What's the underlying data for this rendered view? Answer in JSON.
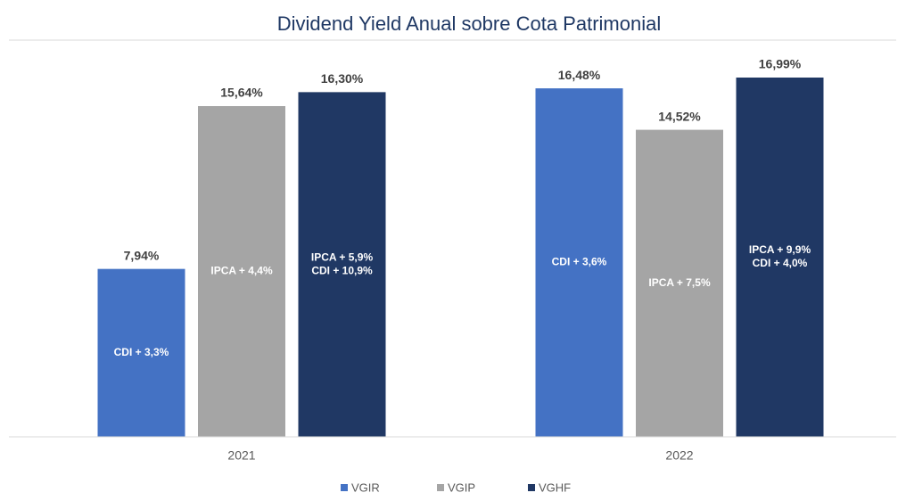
{
  "chart_data": {
    "type": "bar",
    "title": "Dividend Yield Anual sobre Cota Patrimonial",
    "categories": [
      "2021",
      "2022"
    ],
    "series": [
      {
        "name": "VGIR",
        "color": "#4472c4",
        "values": [
          7.94,
          16.48
        ],
        "value_labels": [
          "7,94%",
          "16,48%"
        ],
        "inner_labels": [
          [
            "CDI + 3,3%"
          ],
          [
            "CDI + 3,6%"
          ]
        ]
      },
      {
        "name": "VGIP",
        "color": "#a5a5a5",
        "values": [
          15.64,
          14.52
        ],
        "value_labels": [
          "15,64%",
          "14,52%"
        ],
        "inner_labels": [
          [
            "IPCA + 4,4%"
          ],
          [
            "IPCA + 7,5%"
          ]
        ]
      },
      {
        "name": "VGHF",
        "color": "#203864",
        "values": [
          16.3,
          16.99
        ],
        "value_labels": [
          "16,30%",
          "16,99%"
        ],
        "inner_labels": [
          [
            "IPCA + 5,9%",
            "CDI + 10,9%"
          ],
          [
            "IPCA + 9,9%",
            "CDI + 4,0%"
          ]
        ]
      }
    ],
    "legend": "bottom"
  }
}
